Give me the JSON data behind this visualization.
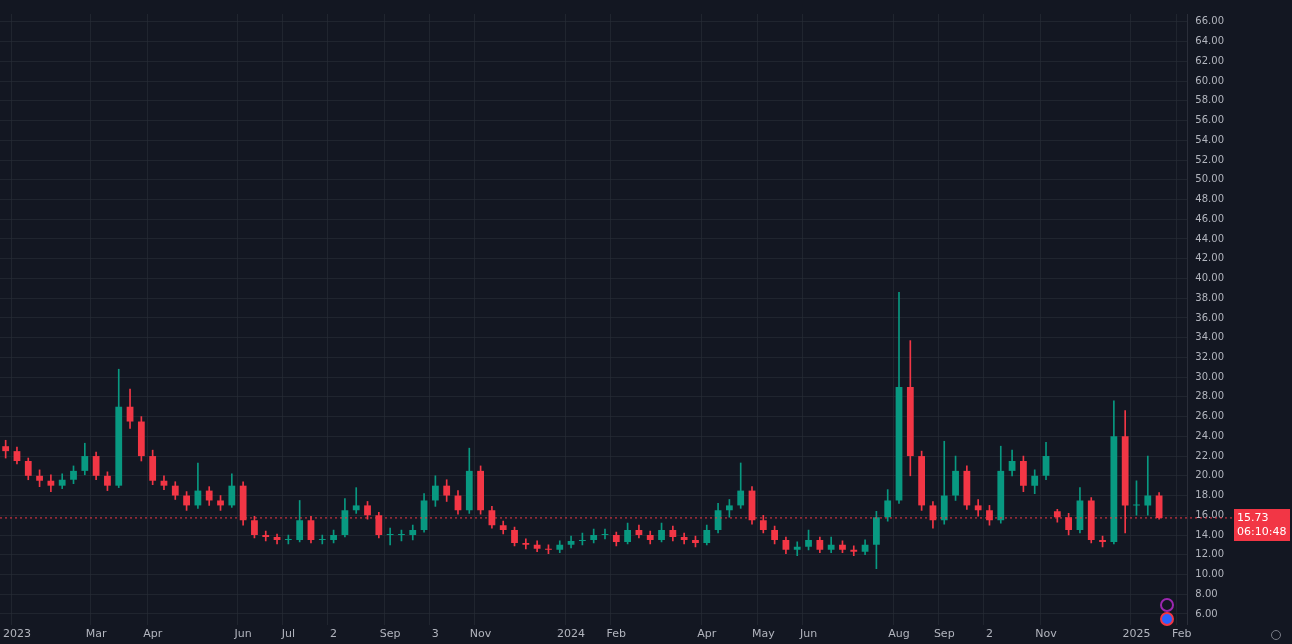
{
  "chart_data": {
    "type": "candlestick",
    "categories": [
      null,
      "2023",
      null,
      null,
      null,
      null,
      null,
      null,
      "Mar",
      null,
      null,
      null,
      null,
      "Apr",
      null,
      null,
      null,
      null,
      null,
      null,
      null,
      "Jun",
      null,
      null,
      null,
      "Jul",
      null,
      null,
      null,
      "2",
      null,
      null,
      null,
      null,
      "Sep",
      null,
      null,
      null,
      "3",
      null,
      null,
      null,
      "Nov",
      null,
      null,
      null,
      null,
      null,
      null,
      null,
      "2024",
      null,
      null,
      null,
      "Feb",
      null,
      null,
      null,
      null,
      null,
      null,
      null,
      "Apr",
      null,
      null,
      null,
      null,
      "May",
      null,
      null,
      null,
      "Jun",
      null,
      null,
      null,
      null,
      null,
      null,
      null,
      "Aug",
      null,
      null,
      null,
      "Sep",
      null,
      null,
      null,
      "2",
      null,
      null,
      null,
      null,
      "Nov",
      null,
      null,
      null,
      null,
      null,
      null,
      null,
      "2025",
      null,
      null,
      null,
      "Feb"
    ],
    "ohlc": [
      [
        23,
        23.6,
        21.8,
        22.5
      ],
      [
        22.5,
        22.9,
        21.2,
        21.5
      ],
      [
        21.5,
        21.8,
        19.6,
        20.0
      ],
      [
        20.0,
        20.6,
        18.9,
        19.5
      ],
      [
        19.5,
        20.1,
        18.4,
        19.0
      ],
      [
        19.0,
        20.2,
        18.7,
        19.6
      ],
      [
        19.6,
        21.0,
        19.2,
        20.5
      ],
      [
        20.5,
        23.3,
        20.1,
        22.0
      ],
      [
        22.0,
        22.4,
        19.6,
        20.0
      ],
      [
        20.0,
        20.4,
        18.5,
        19.0
      ],
      [
        19.0,
        30.8,
        18.8,
        27.0
      ],
      [
        27.0,
        28.8,
        24.8,
        25.5
      ],
      [
        25.5,
        26.0,
        21.5,
        22.0
      ],
      [
        22.0,
        22.6,
        19.1,
        19.5
      ],
      [
        19.5,
        20.0,
        18.6,
        19.0
      ],
      [
        19.0,
        19.4,
        17.6,
        18.0
      ],
      [
        18.0,
        18.4,
        16.5,
        17.0
      ],
      [
        17.0,
        21.3,
        16.7,
        18.5
      ],
      [
        18.5,
        18.9,
        17.0,
        17.5
      ],
      [
        17.5,
        18.0,
        16.5,
        17.0
      ],
      [
        17.0,
        20.2,
        16.8,
        19.0
      ],
      [
        19.0,
        19.4,
        15.0,
        15.5
      ],
      [
        15.5,
        15.9,
        13.7,
        14.0
      ],
      [
        14.0,
        14.4,
        13.4,
        13.8
      ],
      [
        13.8,
        14.1,
        13.1,
        13.5
      ],
      [
        13.5,
        14.0,
        13.1,
        13.5
      ],
      [
        13.5,
        17.5,
        13.3,
        15.5
      ],
      [
        15.5,
        15.9,
        13.2,
        13.5
      ],
      [
        13.5,
        14.0,
        13.1,
        13.5
      ],
      [
        13.5,
        14.5,
        13.2,
        14.0
      ],
      [
        14.0,
        17.7,
        13.8,
        16.5
      ],
      [
        16.5,
        18.8,
        16.2,
        17.0
      ],
      [
        17.0,
        17.4,
        15.6,
        16.0
      ],
      [
        16.0,
        16.3,
        13.7,
        14.0
      ],
      [
        14.0,
        14.7,
        13.0,
        14.0
      ],
      [
        14.0,
        14.5,
        13.4,
        14.0
      ],
      [
        14.0,
        15.0,
        13.5,
        14.5
      ],
      [
        14.5,
        18.2,
        14.3,
        17.5
      ],
      [
        17.5,
        20.0,
        16.9,
        19.0
      ],
      [
        19.0,
        19.6,
        17.4,
        18.0
      ],
      [
        18.0,
        18.5,
        16.1,
        16.5
      ],
      [
        16.5,
        22.8,
        16.2,
        20.5
      ],
      [
        20.5,
        21.0,
        16.1,
        16.5
      ],
      [
        16.5,
        16.9,
        14.7,
        15.0
      ],
      [
        15.0,
        15.4,
        14.1,
        14.5
      ],
      [
        14.5,
        14.8,
        12.9,
        13.2
      ],
      [
        13.2,
        13.6,
        12.6,
        13.0
      ],
      [
        13.0,
        13.4,
        12.3,
        12.6
      ],
      [
        12.6,
        13.0,
        12.1,
        12.5
      ],
      [
        12.5,
        13.4,
        12.2,
        13.0
      ],
      [
        13.0,
        13.9,
        12.7,
        13.4
      ],
      [
        13.4,
        14.2,
        13.0,
        13.5
      ],
      [
        13.5,
        14.6,
        13.2,
        14.0
      ],
      [
        14.0,
        14.6,
        13.6,
        14.0
      ],
      [
        14.0,
        14.3,
        12.9,
        13.3
      ],
      [
        13.3,
        15.2,
        13.1,
        14.5
      ],
      [
        14.5,
        15.0,
        13.7,
        14.0
      ],
      [
        14.0,
        14.4,
        13.1,
        13.5
      ],
      [
        13.5,
        15.2,
        13.3,
        14.5
      ],
      [
        14.5,
        14.9,
        13.4,
        13.8
      ],
      [
        13.8,
        14.2,
        13.1,
        13.5
      ],
      [
        13.5,
        13.9,
        12.8,
        13.2
      ],
      [
        13.2,
        15.0,
        13.0,
        14.5
      ],
      [
        14.5,
        17.2,
        14.2,
        16.5
      ],
      [
        16.5,
        17.6,
        15.8,
        17.0
      ],
      [
        17.0,
        21.3,
        16.7,
        18.5
      ],
      [
        18.5,
        18.9,
        15.1,
        15.5
      ],
      [
        15.5,
        16.0,
        14.2,
        14.5
      ],
      [
        14.5,
        14.9,
        13.1,
        13.5
      ],
      [
        13.5,
        13.8,
        12.1,
        12.5
      ],
      [
        12.5,
        13.3,
        11.9,
        12.8
      ],
      [
        12.8,
        14.5,
        12.5,
        13.5
      ],
      [
        13.5,
        13.8,
        12.2,
        12.5
      ],
      [
        12.5,
        13.8,
        12.2,
        13.0
      ],
      [
        13.0,
        13.4,
        12.2,
        12.5
      ],
      [
        12.5,
        12.9,
        11.9,
        12.3
      ],
      [
        12.3,
        13.5,
        12.0,
        13.0
      ],
      [
        13.0,
        16.4,
        10.6,
        15.8
      ],
      [
        15.8,
        18.6,
        15.4,
        17.5
      ],
      [
        17.5,
        38.6,
        17.2,
        29.0
      ],
      [
        29.0,
        33.7,
        20.0,
        22.0
      ],
      [
        22.0,
        22.5,
        16.5,
        17.0
      ],
      [
        17.0,
        17.4,
        14.7,
        15.5
      ],
      [
        15.5,
        23.5,
        15.1,
        18.0
      ],
      [
        18.0,
        22.0,
        17.5,
        20.5
      ],
      [
        20.5,
        21.0,
        16.6,
        17.0
      ],
      [
        17.0,
        17.6,
        15.9,
        16.5
      ],
      [
        16.5,
        17.0,
        15.0,
        15.5
      ],
      [
        15.5,
        23.0,
        15.2,
        20.5
      ],
      [
        20.5,
        22.6,
        20.0,
        21.5
      ],
      [
        21.5,
        22.0,
        18.4,
        19.0
      ],
      [
        19.0,
        20.6,
        18.2,
        20.0
      ],
      [
        20.0,
        23.4,
        19.6,
        22.0
      ],
      [
        16.4,
        16.6,
        15.3,
        15.8
      ],
      [
        15.8,
        16.2,
        14.0,
        14.5
      ],
      [
        14.5,
        18.8,
        14.2,
        17.5
      ],
      [
        17.5,
        17.8,
        13.2,
        13.5
      ],
      [
        13.5,
        13.9,
        12.8,
        13.3
      ],
      [
        13.3,
        27.6,
        13.1,
        24.0
      ],
      [
        24.0,
        26.6,
        14.2,
        17.0
      ],
      [
        17.0,
        19.5,
        16.0,
        17.0
      ],
      [
        17.0,
        22.0,
        16.0,
        18.0
      ],
      [
        18.0,
        18.3,
        15.6,
        15.73
      ],
      null,
      null
    ],
    "ylim": [
      4.9,
      66.8
    ],
    "yticks": [
      {
        "value": 6,
        "label": "6.00"
      },
      {
        "value": 8,
        "label": "8.00"
      },
      {
        "value": 10,
        "label": "10.00"
      },
      {
        "value": 12,
        "label": "12.00"
      },
      {
        "value": 14,
        "label": "14.00"
      },
      {
        "value": 16,
        "label": "16.00"
      },
      {
        "value": 18,
        "label": "18.00"
      },
      {
        "value": 20,
        "label": "20.00"
      },
      {
        "value": 22,
        "label": "22.00"
      },
      {
        "value": 24,
        "label": "24.00"
      },
      {
        "value": 26,
        "label": "26.00"
      },
      {
        "value": 28,
        "label": "28.00"
      },
      {
        "value": 30,
        "label": "30.00"
      },
      {
        "value": 32,
        "label": "32.00"
      },
      {
        "value": 34,
        "label": "34.00"
      },
      {
        "value": 36,
        "label": "36.00"
      },
      {
        "value": 38,
        "label": "38.00"
      },
      {
        "value": 40,
        "label": "40.00"
      },
      {
        "value": 42,
        "label": "42.00"
      },
      {
        "value": 44,
        "label": "44.00"
      },
      {
        "value": 46,
        "label": "46.00"
      },
      {
        "value": 48,
        "label": "48.00"
      },
      {
        "value": 50,
        "label": "50.00"
      },
      {
        "value": 52,
        "label": "52.00"
      },
      {
        "value": 54,
        "label": "54.00"
      },
      {
        "value": 56,
        "label": "56.00"
      },
      {
        "value": 58,
        "label": "58.00"
      },
      {
        "value": 60,
        "label": "60.00"
      },
      {
        "value": 62,
        "label": "62.00"
      },
      {
        "value": 64,
        "label": "64.00"
      },
      {
        "value": 66,
        "label": "66.00"
      }
    ],
    "grid": true,
    "legend": false,
    "ref_lines": [
      {
        "axis": "y",
        "value": 15.73,
        "label": "15.73",
        "color": "#f23645",
        "line_style": "dotted"
      }
    ],
    "annotations": [
      "06:10:48"
    ]
  }
}
